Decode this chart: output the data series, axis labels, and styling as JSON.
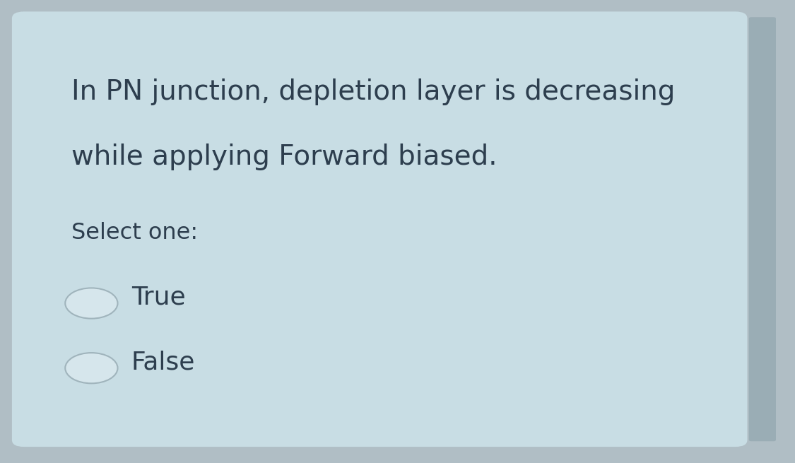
{
  "card_color": "#c8dde4",
  "outer_bg": "#b0bec5",
  "question_line1": "In PN junction, depletion layer is decreasing",
  "question_line2": "while applying Forward biased.",
  "select_label": "Select one:",
  "option1": "True",
  "option2": "False",
  "text_color": "#2d3e4e",
  "radio_fill": "#d6e6ec",
  "radio_stroke": "#a0b4bc",
  "font_size_question": 28,
  "font_size_select": 23,
  "font_size_option": 26,
  "scrollbar_color": "#9aadb5"
}
